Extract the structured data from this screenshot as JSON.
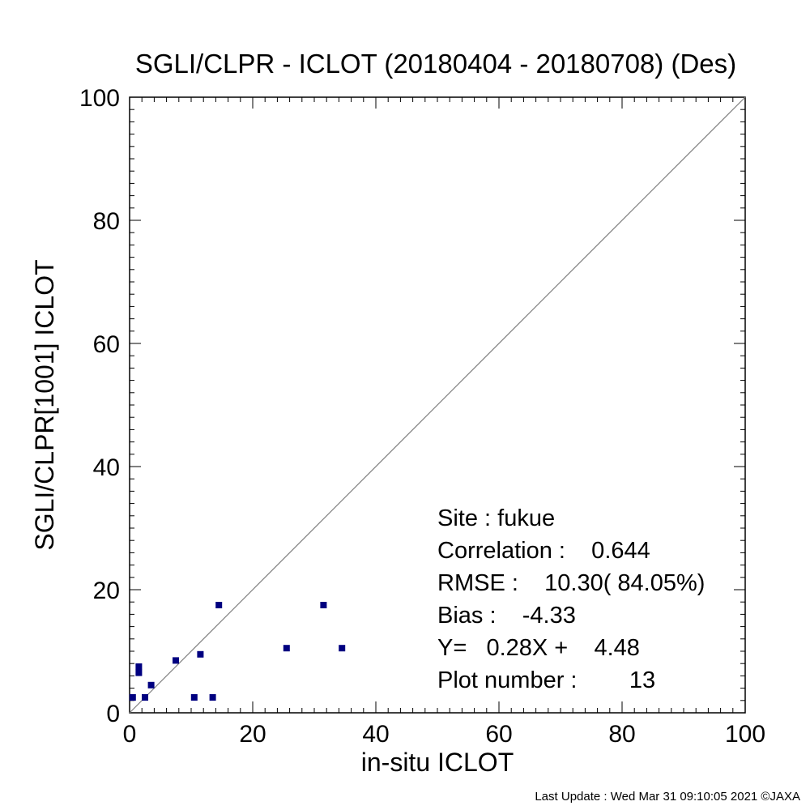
{
  "chart_data": {
    "type": "scatter",
    "title": "SGLI/CLPR - ICLOT (20180404 - 20180708) (Des)",
    "xlabel": "in-situ ICLOT",
    "ylabel": "SGLI/CLPR[1001]    ICLOT",
    "xlim": [
      0,
      100
    ],
    "ylim": [
      0,
      100
    ],
    "x_ticks": [
      "0",
      "20",
      "40",
      "60",
      "80",
      "100"
    ],
    "y_ticks": [
      "0",
      "20",
      "40",
      "60",
      "80",
      "100"
    ],
    "reference_line": "y = x",
    "grid": false,
    "marker_color": "#000080",
    "points": [
      {
        "x": 0.5,
        "y": 2.5
      },
      {
        "x": 1.5,
        "y": 6.5
      },
      {
        "x": 1.5,
        "y": 7.5
      },
      {
        "x": 2.5,
        "y": 2.5
      },
      {
        "x": 3.5,
        "y": 4.5
      },
      {
        "x": 7.5,
        "y": 8.5
      },
      {
        "x": 10.5,
        "y": 2.5
      },
      {
        "x": 11.5,
        "y": 9.5
      },
      {
        "x": 13.5,
        "y": 2.5
      },
      {
        "x": 14.5,
        "y": 17.5
      },
      {
        "x": 25.5,
        "y": 10.5
      },
      {
        "x": 31.5,
        "y": 17.5
      },
      {
        "x": 34.5,
        "y": 10.5
      }
    ],
    "stats": {
      "site": "Site : fukue",
      "correlation": "Correlation :    0.644",
      "rmse": "RMSE :    10.30( 84.05%)",
      "bias": "Bias :    -4.33",
      "regression": "Y=   0.28X +    4.48",
      "plot_number": "Plot number :        13"
    }
  },
  "footer": "Last Update : Wed Mar 31 09:10:05 2021  ©JAXA"
}
